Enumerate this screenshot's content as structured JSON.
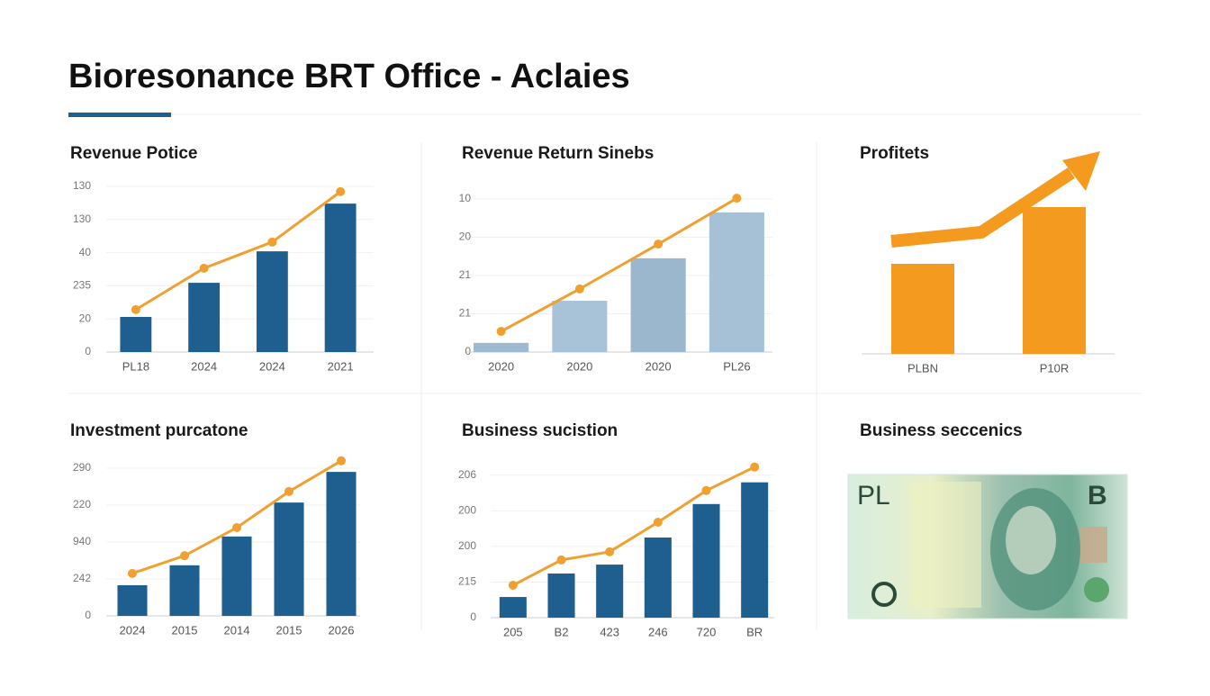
{
  "header": {
    "title": "Bioresonance BRT Office - Aclaies"
  },
  "chart_data": [
    {
      "type": "combo",
      "title": "Revenue Potice",
      "categories": [
        "PL18",
        "2024",
        "2024",
        "2021"
      ],
      "ylim": [
        0,
        5
      ],
      "yticks": [
        0,
        {
          "value": 1,
          "label": "20"
        },
        {
          "value": 2,
          "label": "235"
        },
        {
          "value": 3,
          "label": "40"
        },
        {
          "value": 4,
          "label": "130"
        },
        {
          "value": 5,
          "label": "130"
        }
      ],
      "grid": true,
      "series": [
        {
          "type": "bar",
          "color": "#1f5f8f",
          "values": [
            1.06,
            2.09,
            3.04,
            4.48
          ]
        },
        {
          "type": "line",
          "color": "#f0a030",
          "values": [
            1.28,
            2.53,
            3.32,
            4.84
          ]
        }
      ]
    },
    {
      "type": "combo",
      "title": "Revenue Return Sinebs",
      "categories": [
        "2020",
        "2020",
        "2020",
        "PL26"
      ],
      "ylim": [
        0,
        4
      ],
      "yticks": [
        0,
        {
          "value": 1,
          "label": "21"
        },
        {
          "value": 2,
          "label": "21"
        },
        {
          "value": 3,
          "label": "20"
        },
        {
          "value": 4,
          "label": "10"
        }
      ],
      "grid": true,
      "series": [
        {
          "type": "bar",
          "colors": [
            "#9fbad0",
            "#a8c2d8",
            "#9ab7cd",
            "#a6c1d6"
          ],
          "values": [
            0.24,
            1.34,
            2.45,
            3.65
          ]
        },
        {
          "type": "line",
          "color": "#f0a030",
          "values": [
            0.54,
            1.65,
            2.82,
            4.02
          ]
        }
      ]
    },
    {
      "type": "bar",
      "title": "Profitets",
      "categories": [
        "PLBN",
        "P10R"
      ],
      "ylim": [
        0,
        223
      ],
      "grid": false,
      "series": [
        {
          "type": "bar",
          "color": "#f39a1f",
          "values": [
            100,
            163
          ]
        }
      ]
    },
    {
      "type": "combo",
      "title": "Investment purcatone",
      "categories": [
        "2024",
        "2015",
        "2014",
        "2015",
        "2026"
      ],
      "ylim": [
        0,
        4.5
      ],
      "yticks": [
        0,
        {
          "value": 1,
          "label": "242"
        },
        {
          "value": 2,
          "label": "940"
        },
        {
          "value": 3,
          "label": "220"
        },
        {
          "value": 4,
          "label": "290"
        }
      ],
      "grid": true,
      "series": [
        {
          "type": "bar",
          "color": "#1f5f8f",
          "values": [
            0.83,
            1.37,
            2.15,
            3.07,
            3.9
          ]
        },
        {
          "type": "line",
          "color": "#f0a030",
          "values": [
            1.15,
            1.63,
            2.39,
            3.37,
            4.2
          ]
        }
      ]
    },
    {
      "type": "combo",
      "title": "Business sucistion",
      "categories": [
        "205",
        "B2",
        "423",
        "246",
        "720",
        "BR"
      ],
      "ylim": [
        0,
        4.5
      ],
      "yticks": [
        0,
        {
          "value": 1,
          "label": "215"
        },
        {
          "value": 2,
          "label": "200"
        },
        {
          "value": 3,
          "label": "200"
        },
        {
          "value": 4,
          "label": "206"
        }
      ],
      "grid": true,
      "series": [
        {
          "type": "bar",
          "color": "#1f5f8f",
          "values": [
            0.58,
            1.24,
            1.49,
            2.25,
            3.19,
            3.8
          ]
        },
        {
          "type": "line",
          "color": "#f0a030",
          "values": [
            0.91,
            1.62,
            1.85,
            2.68,
            3.57,
            4.23
          ]
        }
      ]
    }
  ],
  "banknote_panel": {
    "title": "Business seccenics",
    "note_texts": [
      "PL",
      "B"
    ]
  }
}
